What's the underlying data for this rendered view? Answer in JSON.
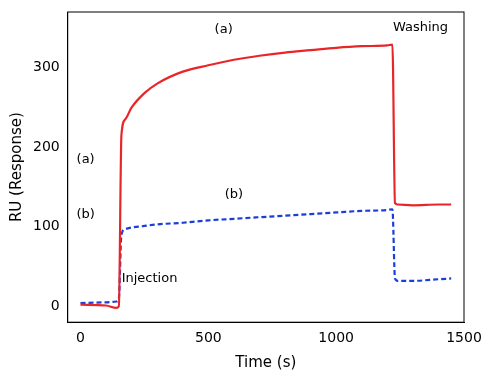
{
  "chart_data": {
    "type": "line",
    "x_label": "Time (s)",
    "y_label": "RU (Response)",
    "x": [
      0,
      100,
      140,
      150,
      160,
      175,
      200,
      250,
      300,
      400,
      500,
      600,
      700,
      800,
      900,
      1000,
      1100,
      1200,
      1220,
      1230,
      1240,
      1300,
      1400,
      1450
    ],
    "series": [
      {
        "name": "(a)",
        "color": "#e8262a",
        "line_style": "solid",
        "marker": "none",
        "values": [
          2,
          1,
          -2,
          0,
          215,
          235,
          250,
          268,
          280,
          295,
          303,
          310,
          315,
          319,
          322,
          325,
          327,
          328,
          329,
          130,
          128,
          127,
          128,
          128
        ]
      },
      {
        "name": "(b)",
        "color": "#1a3fd8",
        "line_style": "dashed",
        "marker": "none",
        "values": [
          4,
          5,
          6,
          10,
          90,
          97,
          99,
          101,
          103,
          105,
          108,
          110,
          112,
          114,
          116,
          118,
          120,
          121,
          122,
          35,
          32,
          32,
          34,
          35
        ]
      }
    ],
    "annotations": [
      {
        "text": "(a)",
        "x": 560,
        "y": 348
      },
      {
        "text": "(b)",
        "x": 600,
        "y": 140
      },
      {
        "text": "Washing",
        "x": 1330,
        "y": 350
      },
      {
        "text": "Injection",
        "x": 270,
        "y": 35
      },
      {
        "text": "(a)",
        "x": 20,
        "y": 185
      },
      {
        "text": "(b)",
        "x": 20,
        "y": 115
      }
    ],
    "xlim": [
      -50,
      1500
    ],
    "ylim": [
      -20,
      370
    ],
    "xticks": [
      0,
      500,
      1000,
      1500
    ],
    "yticks": [
      0,
      100,
      200,
      300
    ],
    "grid": false
  }
}
